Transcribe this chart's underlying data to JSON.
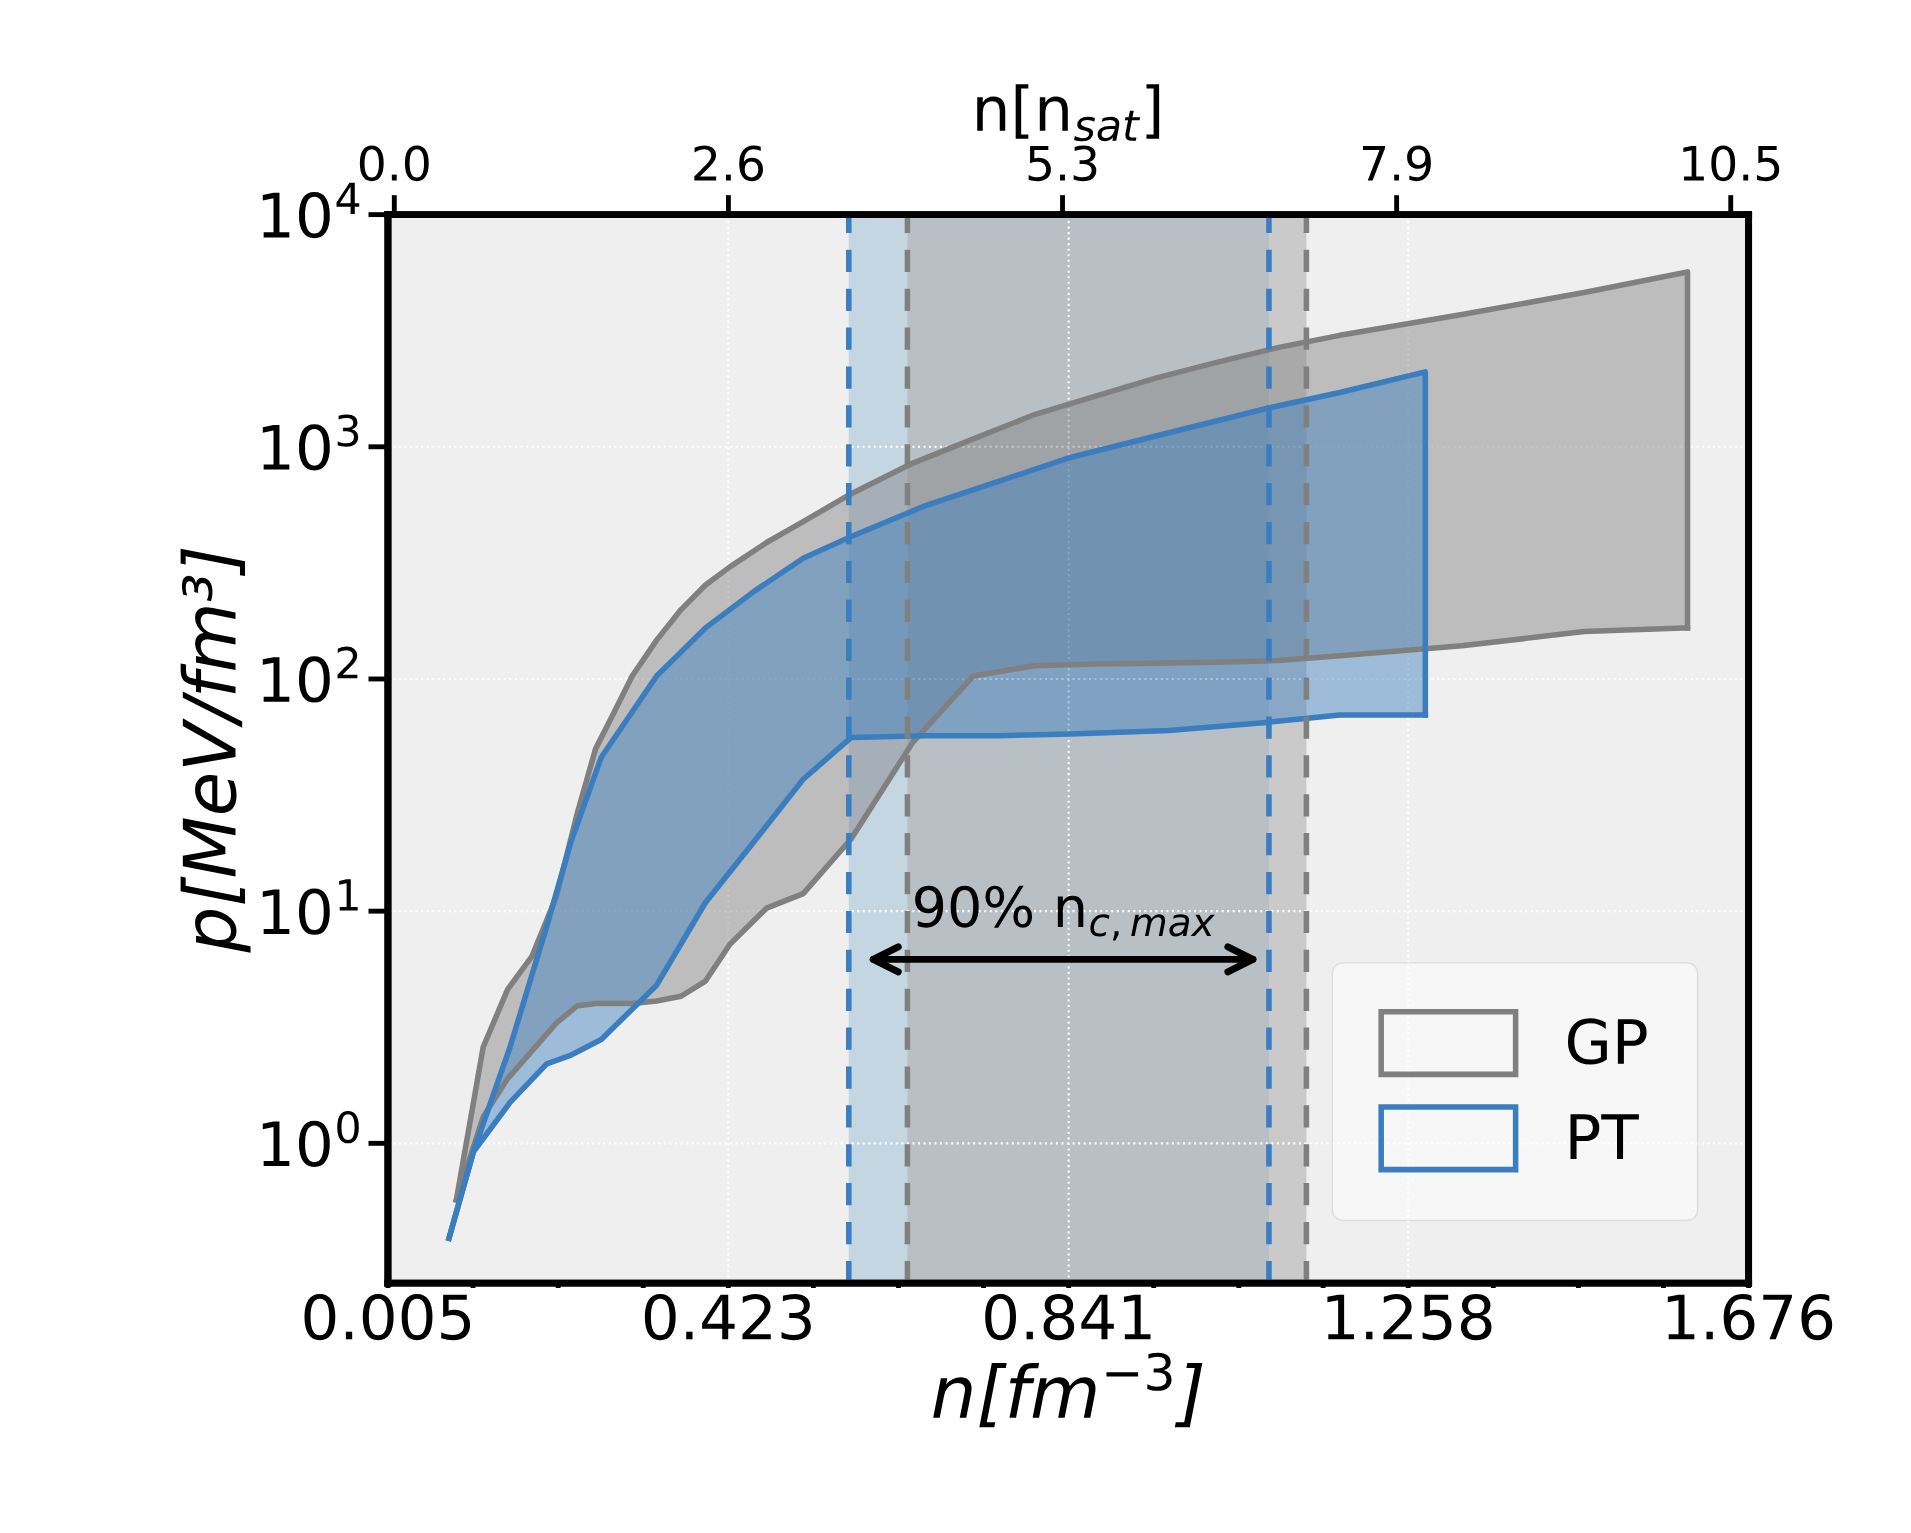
{
  "chart_data": {
    "type": "area",
    "xlabel": "n[fm$^{−3}$]",
    "ylabel": "p[MeV/fm³]",
    "x2label": "n[n$_{sat}$]",
    "log": "y",
    "grid": true,
    "legend": "bottom right",
    "xlim": [
      0.005,
      1.676
    ],
    "xticks": [
      {
        "value": 0.005,
        "label": "0.005"
      },
      {
        "value": 0.1095,
        "label": null
      },
      {
        "value": 0.214,
        "label": null
      },
      {
        "value": 0.3185,
        "label": null
      },
      {
        "value": 0.423,
        "label": "0.423"
      },
      {
        "value": 0.5275,
        "label": null
      },
      {
        "value": 0.632,
        "label": null
      },
      {
        "value": 0.7365,
        "label": null
      },
      {
        "value": 0.841,
        "label": "0.841"
      },
      {
        "value": 0.9455,
        "label": null
      },
      {
        "value": 1.05,
        "label": null
      },
      {
        "value": 1.1535,
        "label": null
      },
      {
        "value": 1.258,
        "label": "1.258"
      },
      {
        "value": 1.3625,
        "label": null
      },
      {
        "value": 1.467,
        "label": null
      },
      {
        "value": 1.5715,
        "label": null
      },
      {
        "value": 1.676,
        "label": "1.676"
      }
    ],
    "x2lim": [
      -0.05,
      10.64
    ],
    "x2ticks": [
      {
        "value": 0,
        "label": "0.0"
      },
      {
        "value": 2.625,
        "label": "2.6"
      },
      {
        "value": 5.25,
        "label": "5.3"
      },
      {
        "value": 7.875,
        "label": "7.9"
      },
      {
        "value": 10.5,
        "label": "10.5"
      }
    ],
    "ylim": [
      0.25,
      10000
    ],
    "yticks": [
      {
        "value": 1,
        "label": "10$^{0}$"
      },
      {
        "value": 10,
        "label": "10$^{1}$"
      },
      {
        "value": 100,
        "label": "10$^{2}$"
      },
      {
        "value": 1000,
        "label": "10$^{3}$"
      },
      {
        "value": 10000,
        "label": "10$^{4}$"
      }
    ],
    "bands": [
      {
        "axis": "x",
        "from": 0.571,
        "to": 1.087,
        "color": "#a9c4da"
      },
      {
        "axis": "x",
        "from": 0.643,
        "to": 1.133,
        "color": "#b0b0b0"
      }
    ],
    "ref_lines": [
      {
        "axis": "x",
        "value": 0.571,
        "color": "#3a7ebf",
        "line_style": "dashed"
      },
      {
        "axis": "x",
        "value": 1.087,
        "color": "#3a7ebf",
        "line_style": "dashed"
      },
      {
        "axis": "x",
        "value": 0.643,
        "color": "#808080",
        "line_style": "dashed"
      },
      {
        "axis": "x",
        "value": 1.133,
        "color": "#808080",
        "line_style": "dashed"
      }
    ],
    "annotations": [
      "90% n$_{c,max}$"
    ],
    "series": [
      {
        "name": "GP",
        "color": "#808080",
        "x": [
          0.089,
          0.122,
          0.152,
          0.182,
          0.212,
          0.237,
          0.26,
          0.282,
          0.305,
          0.335,
          0.365,
          0.395,
          0.425,
          0.47,
          0.515,
          0.574,
          0.649,
          0.724,
          0.799,
          0.874,
          0.949,
          1.024,
          1.099,
          1.174,
          1.324,
          1.474,
          1.601,
          1.601
        ],
        "values": [
          0.57,
          2.6,
          4.6,
          6.4,
          11.6,
          26,
          50,
          71,
          103,
          147,
          199,
          254,
          304,
          387,
          476,
          628,
          849,
          1081,
          1377,
          1652,
          1982,
          2317,
          2680,
          3020,
          3715,
          4615,
          5665,
          166
        ]
      },
      {
        "type": "line",
        "color": "#808080",
        "x": [
          0.089,
          0.122,
          0.152,
          0.182,
          0.212,
          0.237,
          0.26,
          0.282,
          0.305,
          0.335,
          0.365,
          0.395,
          0.425,
          0.47,
          0.515,
          0.574,
          0.649,
          0.724,
          0.799,
          0.874,
          0.949,
          1.024,
          1.099,
          1.174,
          1.324,
          1.474,
          1.601
        ],
        "values": [
          0.57,
          1.3,
          1.9,
          2.5,
          3.3,
          3.9,
          4.0,
          4.0,
          4.0,
          4.1,
          4.3,
          5.0,
          7.2,
          10.3,
          11.9,
          20.5,
          53,
          103,
          114,
          116,
          117,
          118,
          120,
          126,
          139,
          160,
          166
        ]
      },
      {
        "name": "PT",
        "color": "#3a7ebf",
        "x": [
          0.08,
          0.11,
          0.155,
          0.2,
          0.23,
          0.267,
          0.335,
          0.395,
          0.455,
          0.515,
          0.574,
          0.664,
          0.754,
          0.844,
          0.964,
          1.084,
          1.174,
          1.279,
          1.279
        ],
        "values": [
          0.39,
          0.92,
          2.6,
          8.6,
          20,
          46,
          103,
          166,
          239,
          331,
          411,
          556,
          708,
          902,
          1149,
          1463,
          1713,
          2103,
          70
        ]
      },
      {
        "type": "line",
        "color": "#3a7ebf",
        "x": [
          0.08,
          0.11,
          0.155,
          0.2,
          0.23,
          0.267,
          0.335,
          0.395,
          0.455,
          0.515,
          0.574,
          0.664,
          0.754,
          0.844,
          0.964,
          1.084,
          1.174,
          1.279
        ],
        "values": [
          0.39,
          0.92,
          1.5,
          2.2,
          2.4,
          2.8,
          4.8,
          10.9,
          20,
          37,
          56,
          57,
          57,
          58,
          60,
          65,
          70,
          70
        ]
      }
    ]
  }
}
